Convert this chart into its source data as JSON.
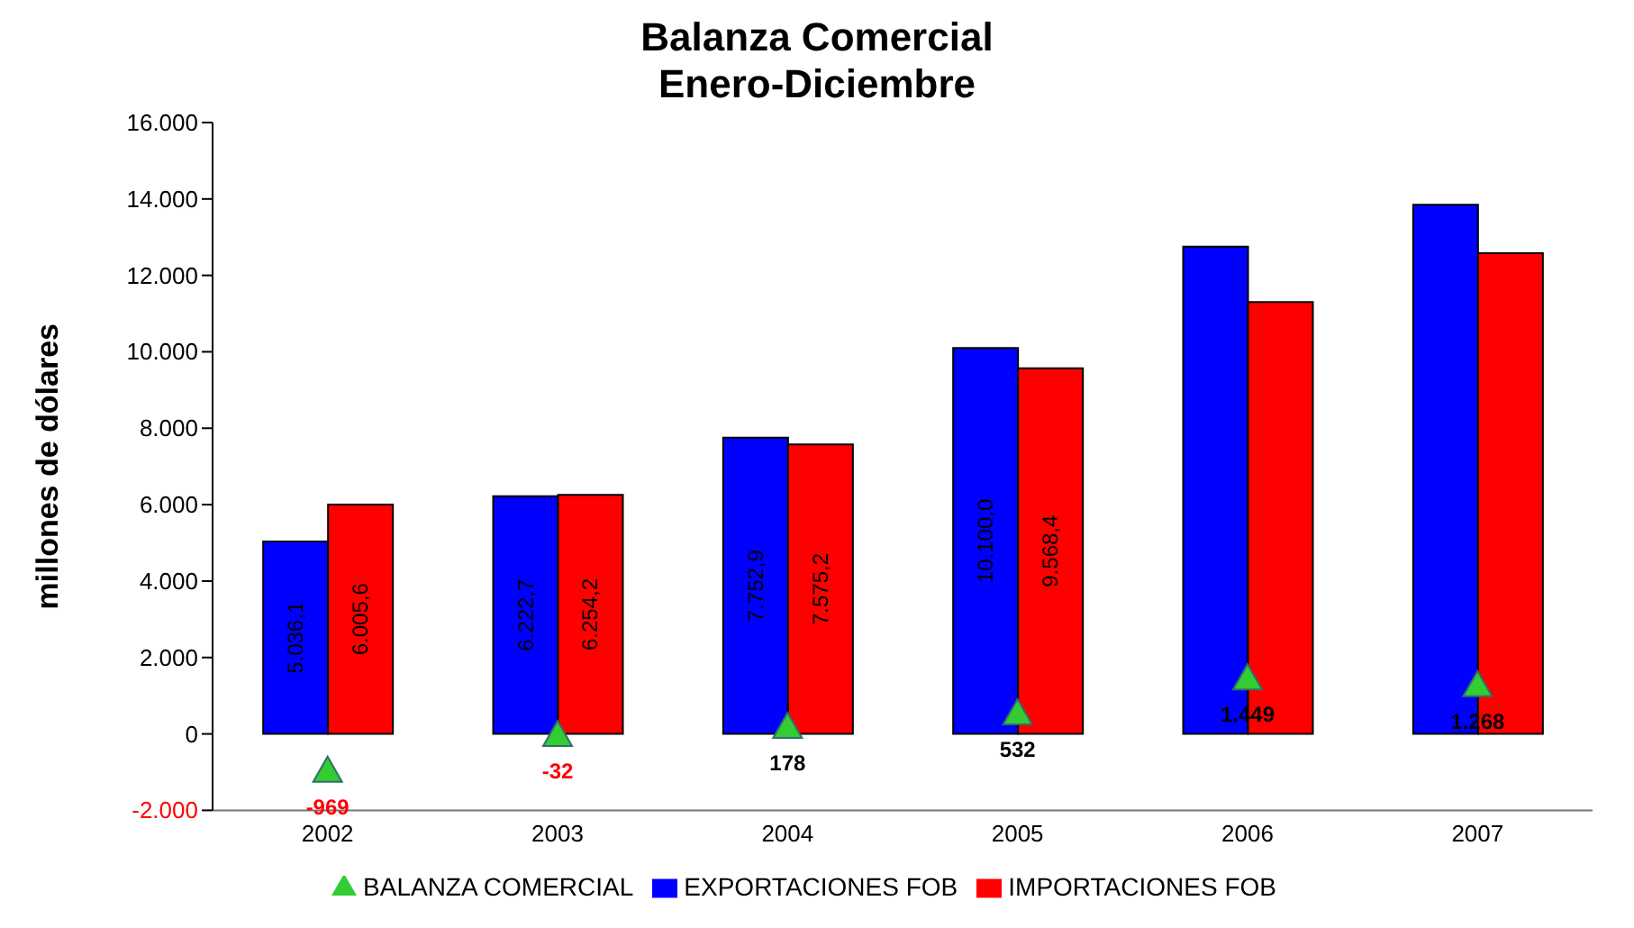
{
  "chart_data": {
    "type": "bar",
    "title": "Balanza Comercial",
    "subtitle": "Enero-Diciembre",
    "ylabel": "millones de dólares",
    "categories": [
      "2002",
      "2003",
      "2004",
      "2005",
      "2006",
      "2007"
    ],
    "series": [
      {
        "name": "EXPORTACIONES FOB",
        "color": "#0000ff",
        "values": [
          5036.1,
          6222.7,
          7752.9,
          10100.0,
          12750,
          13850
        ],
        "value_labels": [
          "5.036,1",
          "6.222,7",
          "7.752,9",
          "10.100,0",
          null,
          null
        ]
      },
      {
        "name": "IMPORTACIONES FOB",
        "color": "#ff0000",
        "values": [
          6005.6,
          6254.2,
          7575.2,
          9568.4,
          11300,
          12580
        ],
        "value_labels": [
          "6.005,6",
          "6.254,2",
          "7.575,2",
          "9.568,4",
          null,
          null
        ]
      },
      {
        "name": "BALANZA COMERCIAL",
        "type": "scatter",
        "color": "#33cc33",
        "marker": "triangle",
        "values": [
          -969,
          -32,
          178,
          532,
          1449,
          1268
        ],
        "value_labels": [
          "-969",
          "-32",
          "178",
          "532",
          "1.449",
          "1.268"
        ]
      }
    ],
    "ylim": [
      -2000,
      16000
    ],
    "yticks": [
      {
        "value": -2000,
        "label": "-2.000"
      },
      {
        "value": 0,
        "label": "0"
      },
      {
        "value": 2000,
        "label": "2.000"
      },
      {
        "value": 4000,
        "label": "4.000"
      },
      {
        "value": 6000,
        "label": "6.000"
      },
      {
        "value": 8000,
        "label": "8.000"
      },
      {
        "value": 10000,
        "label": "10.000"
      },
      {
        "value": 12000,
        "label": "12.000"
      },
      {
        "value": 14000,
        "label": "14.000"
      },
      {
        "value": 16000,
        "label": "16.000"
      }
    ],
    "legend": "bottom"
  }
}
